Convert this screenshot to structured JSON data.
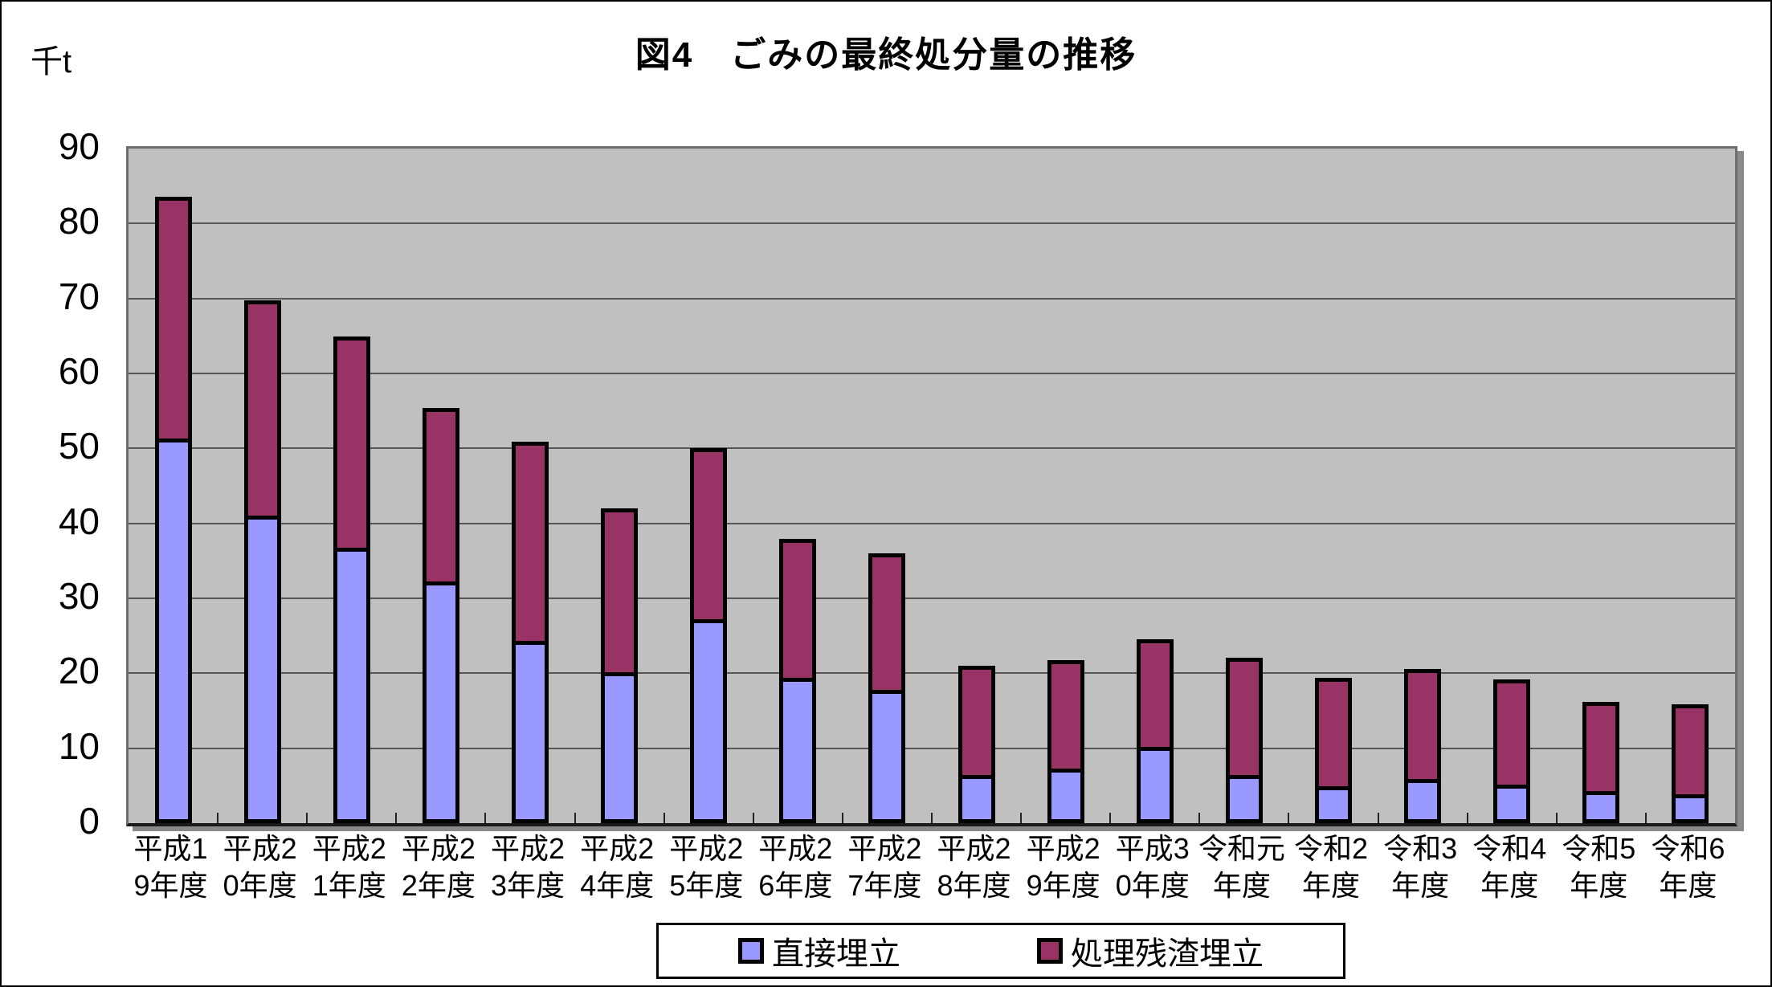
{
  "title": "図4　ごみの最終処分量の推移",
  "unit_label": "千t",
  "colors": {
    "plot_background": "#c0c0c0",
    "direct_landfill": "#9999ff",
    "residue_landfill": "#993366",
    "bar_border": "#000000",
    "page_background": "#ffffff"
  },
  "legend": {
    "items": [
      {
        "label": "直接埋立",
        "color": "#9999ff"
      },
      {
        "label": "処理残渣埋立",
        "color": "#993366"
      }
    ]
  },
  "chart_data": {
    "type": "bar",
    "stacked": true,
    "title": "図4　ごみの最終処分量の推移",
    "ylabel": "千t",
    "xlabel": "",
    "ylim": [
      0,
      90
    ],
    "yticks": [
      0,
      10,
      20,
      30,
      40,
      50,
      60,
      70,
      80,
      90
    ],
    "grid": "horizontal",
    "legend_position": "bottom",
    "categories": [
      "平成19年度",
      "平成20年度",
      "平成21年度",
      "平成22年度",
      "平成23年度",
      "平成24年度",
      "平成25年度",
      "平成26年度",
      "平成27年度",
      "平成28年度",
      "平成29年度",
      "平成30年度",
      "令和元年度",
      "令和2年度",
      "令和3年度",
      "令和4年度",
      "令和5年度",
      "令和6年度"
    ],
    "categories_wrapped": [
      [
        "平成1",
        "9年度"
      ],
      [
        "平成2",
        "0年度"
      ],
      [
        "平成2",
        "1年度"
      ],
      [
        "平成2",
        "2年度"
      ],
      [
        "平成2",
        "3年度"
      ],
      [
        "平成2",
        "4年度"
      ],
      [
        "平成2",
        "5年度"
      ],
      [
        "平成2",
        "6年度"
      ],
      [
        "平成2",
        "7年度"
      ],
      [
        "平成2",
        "8年度"
      ],
      [
        "平成2",
        "9年度"
      ],
      [
        "平成3",
        "0年度"
      ],
      [
        "令和元",
        "年度"
      ],
      [
        "令和2",
        "年度"
      ],
      [
        "令和3",
        "年度"
      ],
      [
        "令和4",
        "年度"
      ],
      [
        "令和5",
        "年度"
      ],
      [
        "令和6",
        "年度"
      ]
    ],
    "series": [
      {
        "name": "直接埋立",
        "color": "#9999ff",
        "values": [
          51.3,
          41.0,
          36.8,
          32.2,
          24.3,
          20.1,
          27.2,
          19.4,
          17.8,
          6.4,
          7.3,
          10.2,
          6.4,
          4.9,
          5.9,
          5.1,
          4.3,
          3.9
        ]
      },
      {
        "name": "処理残渣埋立",
        "color": "#993366",
        "values": [
          32.3,
          28.7,
          28.2,
          23.1,
          26.6,
          21.9,
          22.8,
          18.5,
          18.2,
          14.6,
          14.5,
          14.4,
          15.6,
          14.5,
          14.7,
          14.0,
          11.9,
          12.0
        ]
      }
    ],
    "totals": [
      83.6,
      69.7,
      65.0,
      55.3,
      50.9,
      42.0,
      50.0,
      37.9,
      36.0,
      21.0,
      21.8,
      24.6,
      22.0,
      19.4,
      20.6,
      19.1,
      16.2,
      15.9
    ]
  }
}
